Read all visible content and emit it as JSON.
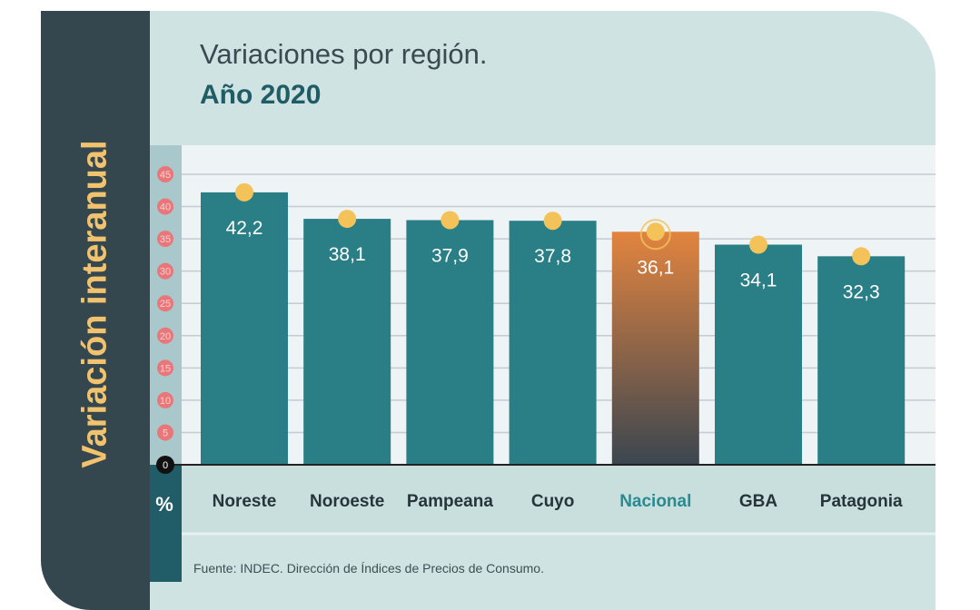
{
  "title": "Variaciones por región.",
  "subtitle": "Año 2020",
  "side_label": "Variación interanual",
  "unit_label": "%",
  "source": "Fuente: INDEC. Dirección de Índices de Precios de Consumo.",
  "colors": {
    "bar": "#2a7f86",
    "highlight_top": "#e2843f",
    "highlight_bottom": "#3b4650",
    "dot": "#f3c35a",
    "tick_bubble": "#e9777a",
    "panel": "#34474f"
  },
  "chart_data": {
    "type": "bar",
    "title": "Variaciones por región. Año 2020",
    "ylabel": "Variación interanual",
    "yunit": "%",
    "categories": [
      "Noreste",
      "Noroeste",
      "Pampeana",
      "Cuyo",
      "Nacional",
      "GBA",
      "Patagonia"
    ],
    "values": [
      42.2,
      38.1,
      37.9,
      37.8,
      36.1,
      34.1,
      32.3
    ],
    "value_labels": [
      "42,2",
      "38,1",
      "37,9",
      "37,8",
      "36,1",
      "34,1",
      "32,3"
    ],
    "highlight": "Nacional",
    "ylim": [
      0,
      45
    ],
    "yticks": [
      0,
      5,
      10,
      15,
      20,
      25,
      30,
      35,
      40,
      45
    ],
    "grid": true
  }
}
